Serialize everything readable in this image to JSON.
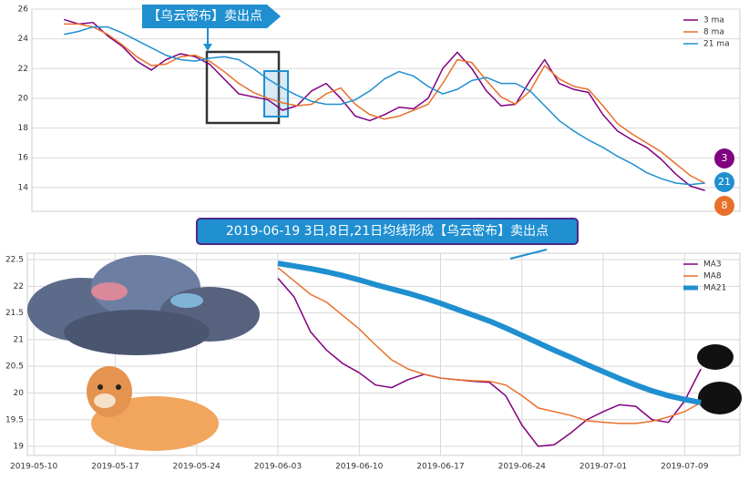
{
  "top_banner": "【乌云密布】卖出点",
  "mid_banner": "2019-06-19 3日,8日,21日均线形成【乌云密布】卖出点",
  "badges": [
    "3",
    "21",
    "8"
  ],
  "chart_data": [
    {
      "type": "line",
      "ylim": [
        12.4,
        26
      ],
      "yticks": [
        14,
        16,
        18,
        20,
        22,
        24,
        26
      ],
      "xlim": [
        -2.2,
        46.4
      ],
      "grid": true,
      "legend": "upper right",
      "x": [
        0,
        1,
        2,
        3,
        4,
        5,
        6,
        7,
        8,
        9,
        10,
        11,
        12,
        13,
        14,
        15,
        16,
        17,
        18,
        19,
        20,
        21,
        22,
        23,
        24,
        25,
        26,
        27,
        28,
        29,
        30,
        31,
        32,
        33,
        34,
        35,
        36,
        37,
        38,
        39,
        40,
        41,
        42,
        43,
        44
      ],
      "series": [
        {
          "name": "3 ma",
          "color": "#800080",
          "width": 1.5,
          "values": [
            25.3,
            25.0,
            25.1,
            24.2,
            23.5,
            22.5,
            21.9,
            22.6,
            23.0,
            22.8,
            22.3,
            21.3,
            20.3,
            20.1,
            19.9,
            19.2,
            19.5,
            20.5,
            21.0,
            20.0,
            18.8,
            18.5,
            18.9,
            19.4,
            19.3,
            20.0,
            22.0,
            23.1,
            22.0,
            20.5,
            19.5,
            19.6,
            21.2,
            22.6,
            21.0,
            20.6,
            20.4,
            18.9,
            17.8,
            17.2,
            16.7,
            15.9,
            14.9,
            14.1,
            13.8
          ]
        },
        {
          "name": "8 ma",
          "color": "#e8702a",
          "width": 1.5,
          "values": [
            25.0,
            25.0,
            24.8,
            24.3,
            23.6,
            22.8,
            22.2,
            22.3,
            22.8,
            22.9,
            22.5,
            21.8,
            21.0,
            20.4,
            20.0,
            19.7,
            19.5,
            19.6,
            20.3,
            20.7,
            19.6,
            18.9,
            18.6,
            18.8,
            19.2,
            19.6,
            21.0,
            22.6,
            22.4,
            21.2,
            20.1,
            19.6,
            20.5,
            22.2,
            21.3,
            20.8,
            20.6,
            19.5,
            18.3,
            17.6,
            17.0,
            16.4,
            15.6,
            14.8,
            14.3
          ]
        },
        {
          "name": "21 ma",
          "color": "#1f8fd0",
          "width": 1.5,
          "values": [
            24.3,
            24.5,
            24.8,
            24.8,
            24.4,
            23.9,
            23.4,
            22.9,
            22.6,
            22.5,
            22.7,
            22.8,
            22.6,
            22.0,
            21.3,
            20.7,
            20.2,
            19.8,
            19.6,
            19.6,
            19.9,
            20.5,
            21.3,
            21.8,
            21.5,
            20.8,
            20.3,
            20.6,
            21.2,
            21.4,
            21.0,
            21.0,
            20.5,
            19.5,
            18.5,
            17.8,
            17.2,
            16.7,
            16.1,
            15.6,
            15.0,
            14.6,
            14.3,
            14.2,
            14.3
          ]
        }
      ]
    },
    {
      "type": "line",
      "ylim": [
        18.83,
        22.62
      ],
      "yticks": [
        19.0,
        19.5,
        20.0,
        20.5,
        21.0,
        21.5,
        22.0,
        22.5
      ],
      "xlim": [
        -0.4,
        43.4
      ],
      "grid": true,
      "legend": "upper right",
      "xticks": [
        {
          "value": 0,
          "label": "2019-05-10"
        },
        {
          "value": 5,
          "label": "2019-05-17"
        },
        {
          "value": 10,
          "label": "2019-05-24"
        },
        {
          "value": 15,
          "label": "2019-06-03"
        },
        {
          "value": 20,
          "label": "2019-06-10"
        },
        {
          "value": 25,
          "label": "2019-06-17"
        },
        {
          "value": 30,
          "label": "2019-06-24"
        },
        {
          "value": 35,
          "label": "2019-07-01"
        },
        {
          "value": 40,
          "label": "2019-07-09"
        }
      ],
      "x": [
        15,
        16,
        17,
        18,
        19,
        20,
        21,
        22,
        23,
        24,
        25,
        26,
        27,
        28,
        29,
        30,
        31,
        32,
        33,
        34,
        35,
        36,
        37,
        38,
        39,
        40,
        41
      ],
      "series": [
        {
          "name": "MA3",
          "color": "#800080",
          "width": 1.5,
          "values": [
            22.15,
            21.8,
            21.15,
            20.8,
            20.55,
            20.38,
            20.15,
            20.1,
            20.25,
            20.35,
            20.28,
            20.25,
            20.22,
            20.2,
            19.95,
            19.4,
            19.0,
            19.03,
            19.25,
            19.5,
            19.65,
            19.78,
            19.75,
            19.5,
            19.45,
            19.85,
            20.45
          ]
        },
        {
          "name": "MA8",
          "color": "#e8702a",
          "width": 1.5,
          "values": [
            22.35,
            22.1,
            21.85,
            21.7,
            21.45,
            21.2,
            20.9,
            20.62,
            20.45,
            20.35,
            20.28,
            20.25,
            20.23,
            20.22,
            20.15,
            19.95,
            19.72,
            19.65,
            19.58,
            19.48,
            19.45,
            19.43,
            19.43,
            19.47,
            19.55,
            19.65,
            19.82
          ]
        },
        {
          "name": "MA21",
          "color": "#1f8fd0",
          "width": 6,
          "values": [
            22.43,
            22.38,
            22.33,
            22.27,
            22.2,
            22.12,
            22.03,
            21.95,
            21.87,
            21.78,
            21.68,
            21.57,
            21.46,
            21.35,
            21.22,
            21.08,
            20.94,
            20.8,
            20.67,
            20.53,
            20.4,
            20.27,
            20.15,
            20.04,
            19.95,
            19.88,
            19.82
          ]
        }
      ]
    }
  ]
}
